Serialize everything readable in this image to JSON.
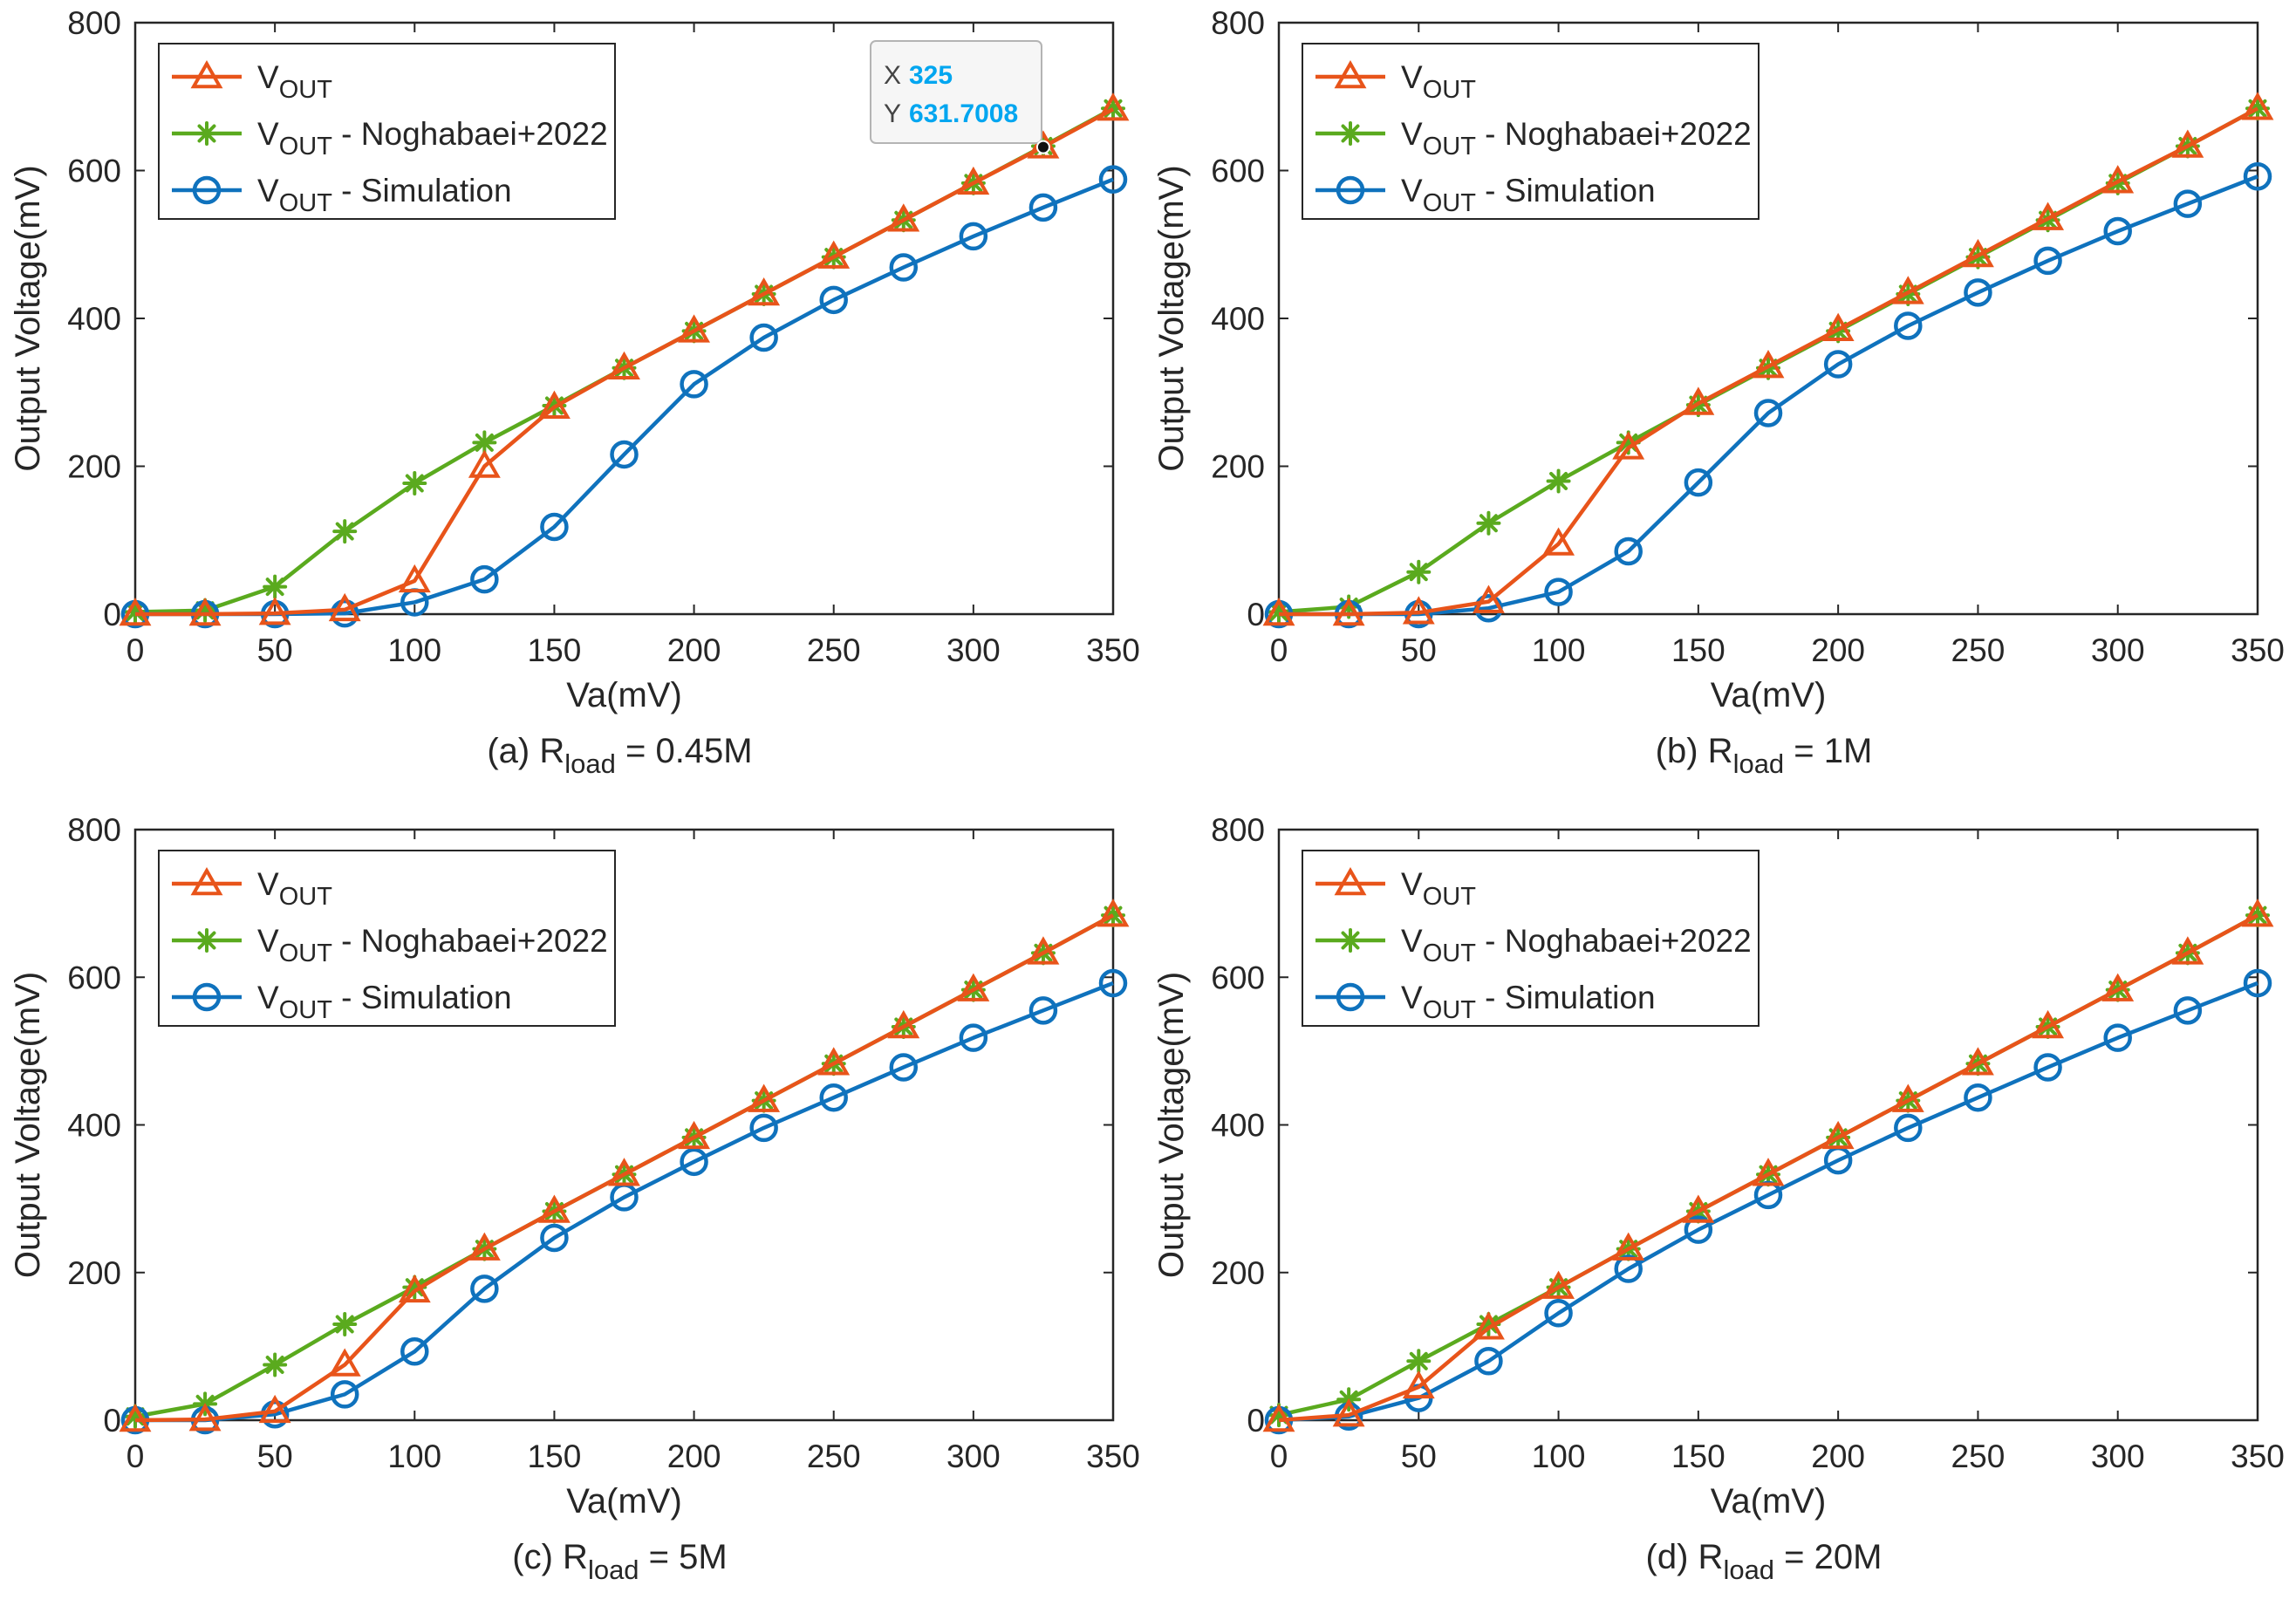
{
  "colors": {
    "vout": "#e8541a",
    "noghabaei": "#5aaa1e",
    "simulation": "#0f72bd",
    "axis": "#262626",
    "datatip_value": "#00a6f0"
  },
  "legend_labels": {
    "vout": [
      "V",
      "OUT",
      ""
    ],
    "noghabaei": [
      "V",
      "OUT",
      " - Noghabaei+2022"
    ],
    "simulation": [
      "V",
      "OUT",
      " - Simulation"
    ]
  },
  "datatip": {
    "x_label": "X",
    "x_value": "325",
    "y_label": "Y",
    "y_value": "631.7008"
  },
  "chart_data": [
    {
      "type": "line",
      "caption": [
        "(a) R",
        "load",
        " = 0.45M"
      ],
      "xlabel": "Va(mV)",
      "ylabel": "Output Voltage(mV)",
      "xlim": [
        0,
        350
      ],
      "ylim": [
        0,
        800
      ],
      "xticks": [
        0,
        50,
        100,
        150,
        200,
        250,
        300,
        350
      ],
      "yticks": [
        0,
        200,
        400,
        600,
        800
      ],
      "legend_position": "top-left",
      "x": [
        0,
        25,
        50,
        75,
        100,
        125,
        150,
        175,
        200,
        225,
        250,
        275,
        300,
        325,
        350
      ],
      "series": [
        {
          "name": "vout",
          "marker": "triangle",
          "values": [
            0,
            0,
            1,
            6,
            45,
            200,
            280,
            333,
            383,
            433,
            483,
            533,
            583,
            632,
            683
          ]
        },
        {
          "name": "noghabaei",
          "marker": "asterisk",
          "values": [
            3,
            5,
            37,
            112,
            177,
            232,
            282,
            333,
            383,
            433,
            483,
            533,
            583,
            633,
            684
          ]
        },
        {
          "name": "simulation",
          "marker": "circle",
          "values": [
            0,
            0,
            0,
            1,
            16,
            47,
            118,
            216,
            311,
            374,
            425,
            469,
            511,
            550,
            588
          ]
        }
      ],
      "datatip_point": [
        325,
        631.7008
      ]
    },
    {
      "type": "line",
      "caption": [
        "(b) R",
        "load",
        " = 1M"
      ],
      "xlabel": "Va(mV)",
      "ylabel": "Output Voltage(mV)",
      "xlim": [
        0,
        350
      ],
      "ylim": [
        0,
        800
      ],
      "xticks": [
        0,
        50,
        100,
        150,
        200,
        250,
        300,
        350
      ],
      "yticks": [
        0,
        200,
        400,
        600,
        800
      ],
      "legend_position": "top-left",
      "x": [
        0,
        25,
        50,
        75,
        100,
        125,
        150,
        175,
        200,
        225,
        250,
        275,
        300,
        325,
        350
      ],
      "series": [
        {
          "name": "vout",
          "marker": "triangle",
          "values": [
            0,
            0,
            2,
            17,
            95,
            225,
            285,
            335,
            385,
            435,
            485,
            535,
            585,
            633,
            684
          ]
        },
        {
          "name": "noghabaei",
          "marker": "asterisk",
          "values": [
            3,
            10,
            57,
            123,
            180,
            232,
            283,
            333,
            383,
            433,
            483,
            533,
            583,
            633,
            684
          ]
        },
        {
          "name": "simulation",
          "marker": "circle",
          "values": [
            0,
            0,
            0,
            8,
            30,
            85,
            178,
            272,
            338,
            390,
            435,
            478,
            518,
            555,
            592
          ]
        }
      ]
    },
    {
      "type": "line",
      "caption": [
        "(c) R",
        "load",
        " = 5M"
      ],
      "xlabel": "Va(mV)",
      "ylabel": "Output Voltage(mV)",
      "xlim": [
        0,
        350
      ],
      "ylim": [
        0,
        800
      ],
      "xticks": [
        0,
        50,
        100,
        150,
        200,
        250,
        300,
        350
      ],
      "yticks": [
        0,
        200,
        400,
        600,
        800
      ],
      "legend_position": "top-left",
      "x": [
        0,
        25,
        50,
        75,
        100,
        125,
        150,
        175,
        200,
        225,
        250,
        275,
        300,
        325,
        350
      ],
      "series": [
        {
          "name": "vout",
          "marker": "triangle",
          "values": [
            0,
            1,
            12,
            75,
            175,
            232,
            283,
            333,
            383,
            433,
            483,
            533,
            583,
            633,
            684
          ]
        },
        {
          "name": "noghabaei",
          "marker": "asterisk",
          "values": [
            5,
            22,
            75,
            130,
            180,
            232,
            283,
            333,
            383,
            433,
            483,
            533,
            583,
            633,
            684
          ]
        },
        {
          "name": "simulation",
          "marker": "circle",
          "values": [
            0,
            0,
            8,
            35,
            93,
            178,
            247,
            302,
            350,
            396,
            437,
            478,
            518,
            555,
            592
          ]
        }
      ]
    },
    {
      "type": "line",
      "caption": [
        "(d) R",
        "load",
        " = 20M"
      ],
      "xlabel": "Va(mV)",
      "ylabel": "Output Voltage(mV)",
      "xlim": [
        0,
        350
      ],
      "ylim": [
        0,
        800
      ],
      "xticks": [
        0,
        50,
        100,
        150,
        200,
        250,
        300,
        350
      ],
      "yticks": [
        0,
        200,
        400,
        600,
        800
      ],
      "legend_position": "top-left",
      "x": [
        0,
        25,
        50,
        75,
        100,
        125,
        150,
        175,
        200,
        225,
        250,
        275,
        300,
        325,
        350
      ],
      "series": [
        {
          "name": "vout",
          "marker": "triangle",
          "values": [
            0,
            7,
            45,
            125,
            180,
            232,
            283,
            333,
            383,
            433,
            483,
            533,
            583,
            633,
            684
          ]
        },
        {
          "name": "noghabaei",
          "marker": "asterisk",
          "values": [
            7,
            28,
            80,
            130,
            180,
            232,
            283,
            333,
            383,
            433,
            483,
            533,
            583,
            633,
            684
          ]
        },
        {
          "name": "simulation",
          "marker": "circle",
          "values": [
            0,
            5,
            30,
            80,
            145,
            205,
            258,
            305,
            352,
            396,
            437,
            478,
            518,
            555,
            592
          ]
        }
      ]
    }
  ]
}
